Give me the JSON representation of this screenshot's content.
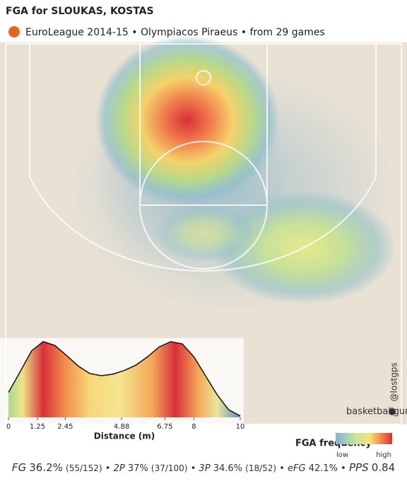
{
  "header": {
    "title": "FGA for SLOUKAS, KOSTAS",
    "subtitle": "EuroLeague 2014-15 • Olympiacos Piraeus • from  29 games"
  },
  "watermark": "basketballguru.gr",
  "credit": "@lostgps",
  "chart_data": {
    "type": "area",
    "x_label": "Distance (m)",
    "x": [
      0,
      0.5,
      1,
      1.5,
      2,
      2.5,
      3,
      3.5,
      4,
      4.5,
      5,
      5.5,
      6,
      6.5,
      7,
      7.5,
      8,
      8.5,
      9,
      9.5,
      10
    ],
    "values": [
      0.33,
      0.6,
      0.88,
      1.0,
      0.95,
      0.82,
      0.68,
      0.58,
      0.55,
      0.57,
      0.62,
      0.69,
      0.8,
      0.93,
      1.0,
      0.97,
      0.8,
      0.55,
      0.3,
      0.1,
      0.02
    ],
    "xlim": [
      0,
      10
    ],
    "ylim": [
      0,
      1
    ],
    "xticks": [
      0,
      1.25,
      2.45,
      4.88,
      6.75,
      8,
      10
    ]
  },
  "legend": {
    "title": "FGA frequency",
    "low": "low",
    "high": "high"
  },
  "stats": [
    {
      "label": "FG",
      "value": "36.2%",
      "detail": "(55/152)"
    },
    {
      "label": "2P",
      "value": "37%",
      "detail": "(37/100)"
    },
    {
      "label": "3P",
      "value": "34.6%",
      "detail": "(18/52)"
    },
    {
      "label": "eFG",
      "value": "42.1%"
    },
    {
      "label": "PPS",
      "value": "0.84"
    }
  ]
}
